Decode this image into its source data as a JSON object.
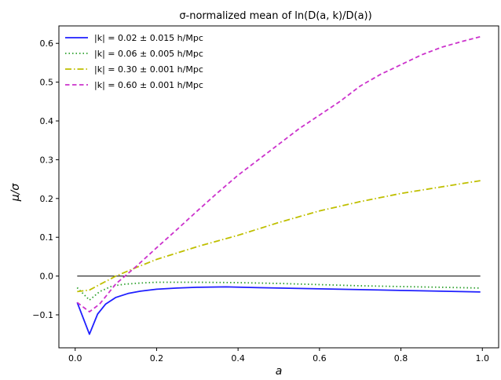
{
  "chart_data": {
    "type": "line",
    "title": "σ-normalized mean of ln(D(a, k)/D(a))",
    "xlabel": "a",
    "ylabel": "μ/σ",
    "xlim": [
      -0.04,
      1.04
    ],
    "ylim": [
      -0.185,
      0.645
    ],
    "xticks": [
      0.0,
      0.2,
      0.4,
      0.6,
      0.8,
      1.0
    ],
    "xtick_labels": [
      "0.0",
      "0.2",
      "0.4",
      "0.6",
      "0.8",
      "1.0"
    ],
    "yticks": [
      -0.1,
      0.0,
      0.1,
      0.2,
      0.3,
      0.4,
      0.5,
      0.6
    ],
    "ytick_labels": [
      "−0.1",
      "0.0",
      "0.1",
      "0.2",
      "0.3",
      "0.4",
      "0.5",
      "0.6"
    ],
    "grid": false,
    "legend_position": "top-left",
    "reference_line": {
      "y": 0.0,
      "x_range": [
        0.005,
        0.995
      ],
      "color": "#000000"
    },
    "series": [
      {
        "name": "|k| = 0.02 ± 0.015 h/Mpc",
        "color": "#1f1fff",
        "style": "solid",
        "x": [
          0.005,
          0.035,
          0.055,
          0.075,
          0.1,
          0.13,
          0.16,
          0.2,
          0.25,
          0.3,
          0.37,
          0.45,
          0.55,
          0.65,
          0.75,
          0.85,
          0.995
        ],
        "y": [
          -0.068,
          -0.15,
          -0.098,
          -0.072,
          -0.055,
          -0.045,
          -0.039,
          -0.034,
          -0.031,
          -0.029,
          -0.028,
          -0.03,
          -0.032,
          -0.034,
          -0.036,
          -0.038,
          -0.041
        ]
      },
      {
        "name": "|k| = 0.06 ± 0.005 h/Mpc",
        "color": "#2ca02c",
        "style": "dotted",
        "x": [
          0.005,
          0.035,
          0.06,
          0.09,
          0.12,
          0.16,
          0.2,
          0.3,
          0.4,
          0.5,
          0.6,
          0.7,
          0.8,
          0.9,
          0.995
        ],
        "y": [
          -0.03,
          -0.062,
          -0.04,
          -0.026,
          -0.021,
          -0.018,
          -0.016,
          -0.016,
          -0.017,
          -0.019,
          -0.022,
          -0.025,
          -0.027,
          -0.029,
          -0.031
        ]
      },
      {
        "name": "|k| = 0.30 ± 0.001 h/Mpc",
        "color": "#bfbf00",
        "style": "dashdot",
        "x": [
          0.005,
          0.035,
          0.06,
          0.1,
          0.15,
          0.2,
          0.3,
          0.4,
          0.5,
          0.6,
          0.7,
          0.8,
          0.9,
          0.995
        ],
        "y": [
          -0.04,
          -0.036,
          -0.022,
          0.0,
          0.022,
          0.043,
          0.076,
          0.105,
          0.138,
          0.168,
          0.192,
          0.213,
          0.23,
          0.246
        ]
      },
      {
        "name": "|k| = 0.60 ± 0.001 h/Mpc",
        "color": "#cc33cc",
        "style": "dashed",
        "x": [
          0.005,
          0.035,
          0.06,
          0.1,
          0.15,
          0.2,
          0.25,
          0.3,
          0.35,
          0.4,
          0.45,
          0.5,
          0.55,
          0.6,
          0.65,
          0.7,
          0.75,
          0.8,
          0.85,
          0.9,
          0.95,
          0.995
        ],
        "y": [
          -0.068,
          -0.092,
          -0.072,
          -0.02,
          0.025,
          0.073,
          0.12,
          0.168,
          0.215,
          0.26,
          0.3,
          0.34,
          0.38,
          0.415,
          0.45,
          0.49,
          0.52,
          0.545,
          0.57,
          0.59,
          0.605,
          0.617
        ]
      }
    ]
  }
}
